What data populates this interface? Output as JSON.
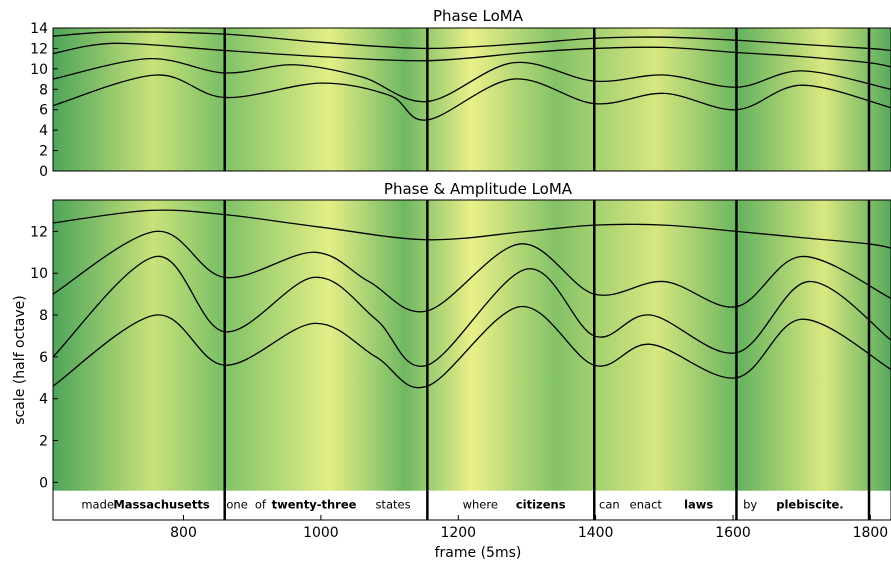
{
  "chart_data": [
    {
      "type": "line",
      "title": "Phase LoMA",
      "xlabel": "",
      "ylabel": "",
      "xlim": [
        610,
        1830
      ],
      "ylim": [
        0,
        14
      ],
      "yticks": [
        0,
        2,
        4,
        6,
        8,
        10,
        12,
        14
      ],
      "xticks": [],
      "grid": false,
      "word_boundaries": [
        860,
        1155,
        1398,
        1605,
        1798
      ],
      "series": [
        {
          "x": [
            610,
            700,
            860,
            1000,
            1155,
            1300,
            1398,
            1500,
            1605,
            1700,
            1798,
            1830
          ],
          "values": [
            13.2,
            13.6,
            13.4,
            12.6,
            12.0,
            12.5,
            13.0,
            13.1,
            12.8,
            12.4,
            12.0,
            11.8
          ]
        },
        {
          "x": [
            610,
            700,
            860,
            1000,
            1155,
            1300,
            1398,
            1500,
            1605,
            1700,
            1798,
            1830
          ],
          "values": [
            11.5,
            12.5,
            11.8,
            11.2,
            10.8,
            11.6,
            12.0,
            12.1,
            11.6,
            11.2,
            10.6,
            10.2
          ]
        },
        {
          "x": [
            610,
            750,
            860,
            960,
            1060,
            1155,
            1280,
            1398,
            1500,
            1605,
            1700,
            1830
          ],
          "values": [
            9.0,
            11.0,
            9.6,
            10.4,
            9.2,
            6.8,
            10.6,
            8.8,
            9.4,
            8.2,
            9.8,
            8.0
          ]
        },
        {
          "x": [
            610,
            760,
            860,
            1000,
            1100,
            1155,
            1280,
            1398,
            1500,
            1605,
            1700,
            1830
          ],
          "values": [
            6.4,
            9.4,
            7.2,
            8.6,
            7.4,
            5.0,
            9.0,
            6.6,
            7.6,
            6.0,
            8.4,
            6.2
          ]
        }
      ]
    },
    {
      "type": "line",
      "title": "Phase & Amplitude LoMA",
      "xlabel": "frame (5ms)",
      "ylabel": "scale (half octave)",
      "xlim": [
        610,
        1830
      ],
      "ylim": [
        -1.8,
        13.5
      ],
      "yticks": [
        0,
        2,
        4,
        6,
        8,
        10,
        12
      ],
      "xticks": [
        800,
        1000,
        1200,
        1400,
        1600,
        1800
      ],
      "grid": false,
      "word_boundaries": [
        860,
        1155,
        1398,
        1605,
        1798
      ],
      "series": [
        {
          "x": [
            610,
            750,
            860,
            1000,
            1155,
            1300,
            1398,
            1500,
            1605,
            1700,
            1798,
            1830
          ],
          "values": [
            12.4,
            13.0,
            12.8,
            12.2,
            11.6,
            12.0,
            12.3,
            12.3,
            12.0,
            11.7,
            11.4,
            11.2
          ]
        },
        {
          "x": [
            610,
            760,
            860,
            990,
            1070,
            1155,
            1290,
            1398,
            1500,
            1605,
            1700,
            1830
          ],
          "values": [
            9.0,
            12.0,
            9.8,
            11.0,
            9.6,
            8.2,
            11.4,
            9.0,
            9.6,
            8.4,
            10.8,
            8.8
          ]
        },
        {
          "x": [
            610,
            760,
            860,
            990,
            1080,
            1155,
            1300,
            1398,
            1480,
            1605,
            1710,
            1830
          ],
          "values": [
            6.0,
            10.8,
            7.2,
            9.8,
            7.8,
            5.6,
            10.2,
            7.0,
            8.0,
            6.2,
            9.6,
            6.8
          ]
        },
        {
          "x": [
            610,
            760,
            860,
            990,
            1080,
            1155,
            1290,
            1398,
            1480,
            1605,
            1700,
            1830
          ],
          "values": [
            4.6,
            8.0,
            5.6,
            7.6,
            6.0,
            4.6,
            8.4,
            5.6,
            6.6,
            5.0,
            7.8,
            5.4
          ]
        }
      ],
      "words": [
        {
          "text": "made",
          "x": 675,
          "bold": false
        },
        {
          "text": "Massachusetts",
          "x": 768,
          "bold": true
        },
        {
          "text": "one",
          "x": 878,
          "bold": false
        },
        {
          "text": "of",
          "x": 912,
          "bold": false
        },
        {
          "text": "twenty-three",
          "x": 990,
          "bold": true
        },
        {
          "text": "states",
          "x": 1105,
          "bold": false
        },
        {
          "text": "where",
          "x": 1232,
          "bold": false
        },
        {
          "text": "citizens",
          "x": 1320,
          "bold": true
        },
        {
          "text": "can",
          "x": 1420,
          "bold": false
        },
        {
          "text": "enact",
          "x": 1473,
          "bold": false
        },
        {
          "text": "laws",
          "x": 1550,
          "bold": true
        },
        {
          "text": "by",
          "x": 1625,
          "bold": false
        },
        {
          "text": "plebiscite.",
          "x": 1712,
          "bold": true
        }
      ]
    }
  ],
  "colors": {
    "bg_dark": "#4aa35a",
    "bg_mid": "#8ec86a",
    "bg_light": "#f0f08a",
    "line": "#000000",
    "marker_white": "#ffffff"
  }
}
